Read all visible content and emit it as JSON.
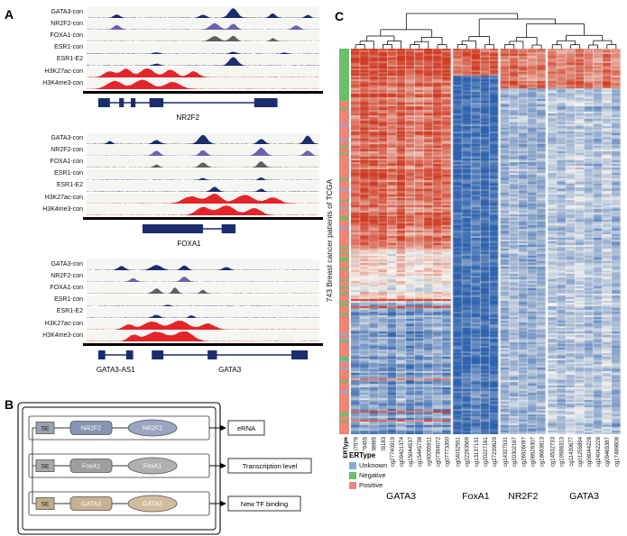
{
  "panels": {
    "a_label": "A",
    "b_label": "B",
    "c_label": "C"
  },
  "tracks": {
    "labels": [
      "GATA3-con",
      "NR2F2-con",
      "FOXA1-con",
      "ESR1-con",
      "ESR1-E2",
      "H3K27ac-con",
      "H3K4me3-con"
    ],
    "colors": [
      "#1c2d6e",
      "#6c63ae",
      "#5f5f5f",
      "#1c2d6e",
      "#1c2d6e",
      "#e3242b",
      "#e3242b"
    ],
    "loci": [
      {
        "name": "NR2F2",
        "peaks": [
          [
            [
              0.13,
              0.018,
              0.35
            ],
            [
              0.5,
              0.02,
              0.3
            ],
            [
              0.63,
              0.025,
              0.95
            ],
            [
              0.8,
              0.018,
              0.45
            ],
            [
              0.95,
              0.015,
              0.3
            ]
          ],
          [
            [
              0.13,
              0.02,
              0.45
            ],
            [
              0.55,
              0.028,
              0.62
            ],
            [
              0.63,
              0.02,
              0.58
            ],
            [
              0.9,
              0.02,
              0.4
            ]
          ],
          [
            [
              0.55,
              0.028,
              0.5
            ],
            [
              0.63,
              0.02,
              0.55
            ],
            [
              0.8,
              0.015,
              0.3
            ]
          ],
          [
            [
              0.3,
              0.02,
              0.15
            ],
            [
              0.63,
              0.02,
              0.2
            ],
            [
              0.85,
              0.015,
              0.12
            ]
          ],
          [
            [
              0.3,
              0.02,
              0.2
            ],
            [
              0.63,
              0.025,
              0.85
            ]
          ],
          [
            [
              0.1,
              0.035,
              0.6
            ],
            [
              0.17,
              0.03,
              0.85
            ],
            [
              0.26,
              0.04,
              0.9
            ],
            [
              0.36,
              0.035,
              0.75
            ],
            [
              0.46,
              0.03,
              0.6
            ]
          ],
          [
            [
              0.12,
              0.045,
              0.8
            ],
            [
              0.24,
              0.05,
              0.92
            ],
            [
              0.37,
              0.045,
              0.7
            ]
          ]
        ],
        "genes": [
          {
            "name": "NR2F2",
            "line": [
              0.05,
              0.82
            ],
            "exons": [
              [
                0.05,
                0.1
              ],
              [
                0.14,
                0.16
              ],
              [
                0.19,
                0.21
              ],
              [
                0.27,
                0.33
              ],
              [
                0.72,
                0.82
              ]
            ]
          }
        ]
      },
      {
        "name": "FOXA1",
        "peaks": [
          [
            [
              0.1,
              0.015,
              0.3
            ],
            [
              0.3,
              0.02,
              0.4
            ],
            [
              0.5,
              0.025,
              0.9
            ],
            [
              0.75,
              0.02,
              0.5
            ],
            [
              0.95,
              0.02,
              0.85
            ]
          ],
          [
            [
              0.3,
              0.02,
              0.5
            ],
            [
              0.5,
              0.02,
              0.55
            ],
            [
              0.75,
              0.025,
              0.8
            ],
            [
              0.95,
              0.02,
              0.5
            ]
          ],
          [
            [
              0.3,
              0.015,
              0.3
            ],
            [
              0.5,
              0.02,
              0.5
            ],
            [
              0.75,
              0.02,
              0.6
            ]
          ],
          [
            [
              0.5,
              0.015,
              0.2
            ],
            [
              0.75,
              0.015,
              0.25
            ]
          ],
          [
            [
              0.55,
              0.02,
              0.5
            ],
            [
              0.75,
              0.015,
              0.3
            ]
          ],
          [
            [
              0.45,
              0.05,
              0.7
            ],
            [
              0.55,
              0.04,
              0.95
            ],
            [
              0.68,
              0.05,
              0.85
            ],
            [
              0.8,
              0.04,
              0.6
            ]
          ],
          [
            [
              0.5,
              0.04,
              0.8
            ],
            [
              0.6,
              0.05,
              0.95
            ],
            [
              0.72,
              0.04,
              0.7
            ]
          ]
        ],
        "genes": [
          {
            "name": "FOXA1",
            "line": [
              0.24,
              0.64
            ],
            "exons": [
              [
                0.24,
                0.5
              ],
              [
                0.58,
                0.64
              ]
            ]
          }
        ]
      },
      {
        "name": "GATA3",
        "peaks": [
          [
            [
              0.15,
              0.02,
              0.4
            ],
            [
              0.3,
              0.03,
              0.5
            ],
            [
              0.42,
              0.02,
              0.45
            ],
            [
              0.6,
              0.02,
              0.3
            ]
          ],
          [
            [
              0.2,
              0.02,
              0.35
            ],
            [
              0.42,
              0.02,
              0.5
            ]
          ],
          [
            [
              0.3,
              0.02,
              0.5
            ],
            [
              0.38,
              0.015,
              0.6
            ],
            [
              0.5,
              0.015,
              0.35
            ]
          ],
          [
            [
              0.35,
              0.015,
              0.15
            ]
          ],
          [
            [
              0.3,
              0.02,
              0.3
            ],
            [
              0.45,
              0.015,
              0.25
            ]
          ],
          [
            [
              0.18,
              0.03,
              0.5
            ],
            [
              0.28,
              0.05,
              0.8
            ],
            [
              0.4,
              0.05,
              0.9
            ],
            [
              0.52,
              0.04,
              0.6
            ]
          ],
          [
            [
              0.2,
              0.03,
              0.6
            ],
            [
              0.3,
              0.06,
              0.95
            ],
            [
              0.42,
              0.05,
              1.0
            ]
          ]
        ],
        "genes": [
          {
            "name": "GATA3-AS1",
            "line": [
              0.05,
              0.2
            ],
            "exons": [
              [
                0.05,
                0.08
              ],
              [
                0.17,
                0.2
              ]
            ]
          },
          {
            "name": "GATA3",
            "line": [
              0.28,
              0.95
            ],
            "exons": [
              [
                0.28,
                0.33
              ],
              [
                0.52,
                0.56
              ],
              [
                0.88,
                0.95
              ]
            ]
          }
        ]
      }
    ]
  },
  "diagram": {
    "rows": [
      {
        "se": "SE",
        "se_color": "#9aa0ae",
        "tf": "NR2F2",
        "tf_color": "#8794b3",
        "oval_color": "#9aa5c2"
      },
      {
        "se": "SE",
        "se_color": "#a8a8a8",
        "tf": "FoxA1",
        "tf_color": "#9e9e9e",
        "oval_color": "#b0b0b0"
      },
      {
        "se": "SE",
        "se_color": "#c2ad8c",
        "tf": "GATA3",
        "tf_color": "#c7b190",
        "oval_color": "#d1bd9e"
      }
    ],
    "outputs": [
      "eRNA",
      "Transcription level",
      "New TF binding"
    ]
  },
  "heatmap": {
    "ylabel": "743 Breast cancer patients of TCGA",
    "er_axis_label": "ERType",
    "legend": {
      "title": "ERType",
      "items": [
        {
          "label": "Unknown",
          "color": "#82aed6"
        },
        {
          "label": "Negative",
          "color": "#6abf69"
        },
        {
          "label": "Positive",
          "color": "#f08576"
        }
      ]
    },
    "colormap": {
      "low": "#2f62ac",
      "mid": "#f5f4ef",
      "high": "#cf3a22"
    },
    "groups": [
      {
        "label": "GATA3",
        "cpgs": [
          "cg16267979",
          "cg01679455",
          "cg10938985",
          "cg09335183",
          "cg27740919",
          "cg09421374",
          "cg15044537",
          "cg15445738",
          "cg00055911",
          "cg07394072",
          "cg07773350"
        ]
      },
      {
        "label": "FoxA1",
        "cpgs": [
          "cg04032551",
          "cg22283569",
          "cg13137131",
          "cg20227161",
          "cg27239629"
        ]
      },
      {
        "label": "NR2F2",
        "cpgs": [
          "cg14327531",
          "cg20302167",
          "cg26926097",
          "cg08928307",
          "cg18683813"
        ]
      },
      {
        "label": "GATA3",
        "cpgs": [
          "cg14532733",
          "cg19588313",
          "cg11430677",
          "cg01255894",
          "cg08044228",
          "cg24042228",
          "cg09465387",
          "cg17489608"
        ]
      }
    ]
  }
}
